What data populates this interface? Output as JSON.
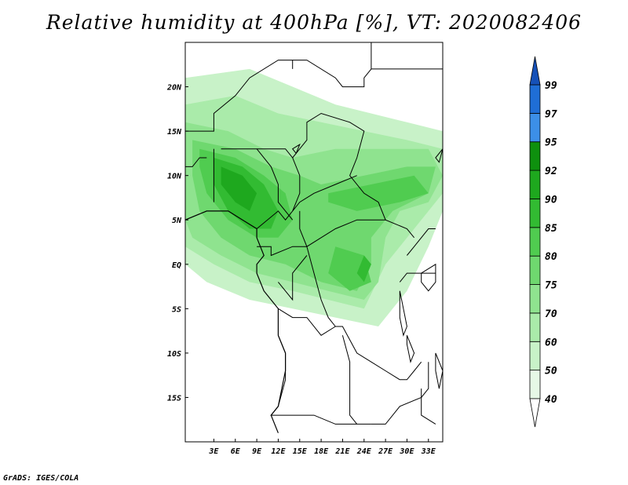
{
  "title": "Relative humidity at 400hPa [%], VT: 2020082406",
  "credit": "GrADS: IGES/COLA",
  "map": {
    "lon_range": [
      -1,
      35
    ],
    "lat_range": [
      -20,
      25
    ],
    "lon_ticks": [
      {
        "value": 3,
        "label": "3E"
      },
      {
        "value": 6,
        "label": "6E"
      },
      {
        "value": 9,
        "label": "9E"
      },
      {
        "value": 12,
        "label": "12E"
      },
      {
        "value": 15,
        "label": "15E"
      },
      {
        "value": 18,
        "label": "18E"
      },
      {
        "value": 21,
        "label": "21E"
      },
      {
        "value": 24,
        "label": "24E"
      },
      {
        "value": 27,
        "label": "27E"
      },
      {
        "value": 30,
        "label": "30E"
      },
      {
        "value": 33,
        "label": "33E"
      }
    ],
    "lat_ticks": [
      {
        "value": 20,
        "label": "20N"
      },
      {
        "value": 15,
        "label": "15N"
      },
      {
        "value": 10,
        "label": "10N"
      },
      {
        "value": 5,
        "label": "5N"
      },
      {
        "value": 0,
        "label": "EQ"
      },
      {
        "value": -5,
        "label": "5S"
      },
      {
        "value": -10,
        "label": "10S"
      },
      {
        "value": -15,
        "label": "15S"
      }
    ],
    "humidity_zones": [
      {
        "level": 50,
        "pts": [
          [
            -1,
            21
          ],
          [
            8,
            22
          ],
          [
            20,
            18
          ],
          [
            30,
            16
          ],
          [
            35,
            15
          ],
          [
            35,
            6
          ],
          [
            33,
            2
          ],
          [
            30,
            -3
          ],
          [
            26,
            -7
          ],
          [
            20,
            -6
          ],
          [
            14,
            -5
          ],
          [
            8,
            -4
          ],
          [
            2,
            -2
          ],
          [
            -1,
            0
          ]
        ]
      },
      {
        "level": 60,
        "pts": [
          [
            -1,
            18
          ],
          [
            6,
            19
          ],
          [
            12,
            17
          ],
          [
            18,
            16
          ],
          [
            24,
            15
          ],
          [
            30,
            14
          ],
          [
            35,
            13
          ],
          [
            35,
            8
          ],
          [
            31,
            4
          ],
          [
            27,
            0
          ],
          [
            24,
            -5
          ],
          [
            19,
            -4
          ],
          [
            14,
            -3
          ],
          [
            8,
            -2
          ],
          [
            3,
            0
          ],
          [
            -1,
            2
          ]
        ]
      },
      {
        "level": 70,
        "pts": [
          [
            -1,
            16
          ],
          [
            5,
            15
          ],
          [
            10,
            13
          ],
          [
            14,
            12
          ],
          [
            20,
            13
          ],
          [
            26,
            13
          ],
          [
            33,
            13
          ],
          [
            35,
            10
          ],
          [
            33,
            7
          ],
          [
            29,
            6
          ],
          [
            27,
            3
          ],
          [
            26,
            -2
          ],
          [
            24,
            -4
          ],
          [
            19,
            -3
          ],
          [
            14,
            -2
          ],
          [
            9,
            -1
          ],
          [
            4,
            1
          ],
          [
            0,
            3
          ],
          [
            -1,
            5
          ]
        ]
      },
      {
        "level": 75,
        "pts": [
          [
            0,
            14
          ],
          [
            6,
            13
          ],
          [
            11,
            11
          ],
          [
            15,
            10
          ],
          [
            18,
            9
          ],
          [
            24,
            10
          ],
          [
            30,
            11
          ],
          [
            34,
            11
          ],
          [
            33,
            8
          ],
          [
            28,
            6
          ],
          [
            25,
            3
          ],
          [
            25,
            0
          ],
          [
            23,
            -3
          ],
          [
            18,
            -2
          ],
          [
            13,
            0
          ],
          [
            8,
            1
          ],
          [
            4,
            3
          ],
          [
            1,
            6
          ],
          [
            0,
            10
          ]
        ]
      },
      {
        "level": 80,
        "pts": [
          [
            1,
            13
          ],
          [
            6,
            12
          ],
          [
            10,
            10
          ],
          [
            13,
            8
          ],
          [
            14,
            5
          ],
          [
            12,
            3
          ],
          [
            9,
            3
          ],
          [
            5,
            5
          ],
          [
            2,
            8
          ],
          [
            1,
            11
          ]
        ]
      },
      {
        "level": 80,
        "pts": [
          [
            19,
            8
          ],
          [
            25,
            9
          ],
          [
            31,
            10
          ],
          [
            33,
            8
          ],
          [
            29,
            7
          ],
          [
            23,
            6
          ],
          [
            19,
            7
          ]
        ]
      },
      {
        "level": 80,
        "pts": [
          [
            20,
            2
          ],
          [
            24,
            1
          ],
          [
            25,
            -2
          ],
          [
            22,
            -3
          ],
          [
            19,
            -1
          ]
        ]
      },
      {
        "level": 85,
        "pts": [
          [
            3,
            12
          ],
          [
            7,
            11
          ],
          [
            10,
            9
          ],
          [
            12,
            6
          ],
          [
            11,
            4
          ],
          [
            8,
            4
          ],
          [
            5,
            6
          ],
          [
            3,
            9
          ]
        ]
      },
      {
        "level": 85,
        "pts": [
          [
            24,
            1
          ],
          [
            25,
            0
          ],
          [
            24,
            -2
          ],
          [
            23,
            -1
          ]
        ]
      },
      {
        "level": 90,
        "pts": [
          [
            4,
            11
          ],
          [
            7,
            10
          ],
          [
            9,
            8
          ],
          [
            8,
            6
          ],
          [
            6,
            7
          ],
          [
            4,
            9
          ]
        ]
      }
    ],
    "borders": [
      [
        [
          -1,
          15
        ],
        [
          3,
          15
        ],
        [
          3,
          17
        ],
        [
          6,
          19
        ],
        [
          8,
          21
        ],
        [
          12,
          23
        ],
        [
          14,
          23
        ],
        [
          14,
          22
        ]
      ],
      [
        [
          14,
          23
        ],
        [
          16,
          23
        ],
        [
          20,
          21
        ],
        [
          21,
          20
        ],
        [
          24,
          20
        ],
        [
          24,
          21
        ],
        [
          25,
          22
        ],
        [
          25,
          25
        ]
      ],
      [
        [
          25,
          22
        ],
        [
          35,
          22
        ]
      ],
      [
        [
          4,
          13
        ],
        [
          7,
          13
        ],
        [
          10,
          13
        ],
        [
          13,
          13
        ],
        [
          14,
          12
        ],
        [
          15,
          10
        ],
        [
          15,
          8
        ],
        [
          14,
          6
        ]
      ],
      [
        [
          14,
          12
        ],
        [
          15,
          13
        ],
        [
          16,
          14
        ],
        [
          16,
          16
        ],
        [
          18,
          17
        ],
        [
          22,
          16
        ],
        [
          24,
          15
        ],
        [
          23,
          12
        ],
        [
          22,
          10
        ],
        [
          24,
          8
        ],
        [
          26,
          7
        ],
        [
          27,
          5
        ],
        [
          30,
          4
        ],
        [
          31,
          3
        ]
      ],
      [
        [
          -1,
          11
        ],
        [
          0,
          11
        ],
        [
          1,
          12
        ],
        [
          2,
          12
        ]
      ],
      [
        [
          3,
          13
        ],
        [
          3,
          10
        ],
        [
          3,
          7
        ]
      ],
      [
        [
          9,
          13
        ],
        [
          11,
          11
        ],
        [
          12,
          9
        ],
        [
          12,
          7
        ],
        [
          14,
          5
        ]
      ],
      [
        [
          9,
          4
        ],
        [
          12,
          6
        ],
        [
          13,
          5
        ],
        [
          14,
          6
        ]
      ],
      [
        [
          14,
          6
        ],
        [
          15,
          7
        ],
        [
          17,
          8
        ],
        [
          20,
          9
        ],
        [
          23,
          10
        ]
      ],
      [
        [
          15,
          6
        ],
        [
          15,
          4
        ],
        [
          16,
          2
        ],
        [
          18,
          3
        ],
        [
          20,
          4
        ],
        [
          23,
          5
        ],
        [
          26,
          5
        ],
        [
          27,
          5
        ]
      ],
      [
        [
          9,
          2
        ],
        [
          11,
          2
        ],
        [
          11,
          1
        ],
        [
          14,
          2
        ],
        [
          16,
          2
        ]
      ],
      [
        [
          12,
          -2
        ],
        [
          14,
          -4
        ],
        [
          14,
          -1
        ],
        [
          16,
          1
        ]
      ],
      [
        [
          16,
          2
        ],
        [
          17,
          -1
        ],
        [
          18,
          -4
        ],
        [
          19,
          -6
        ],
        [
          20,
          -7
        ],
        [
          21,
          -7
        ],
        [
          23,
          -10
        ],
        [
          25,
          -11
        ],
        [
          27,
          -12
        ],
        [
          29,
          -13
        ],
        [
          30,
          -13
        ],
        [
          31,
          -12
        ],
        [
          32,
          -11
        ]
      ],
      [
        [
          12,
          -5
        ],
        [
          14,
          -6
        ],
        [
          16,
          -6
        ],
        [
          18,
          -8
        ],
        [
          20,
          -7
        ]
      ],
      [
        [
          12,
          -8
        ],
        [
          13,
          -10
        ],
        [
          13,
          -13
        ],
        [
          12,
          -16
        ],
        [
          11,
          -17
        ],
        [
          13,
          -17
        ],
        [
          17,
          -17
        ],
        [
          20,
          -18
        ],
        [
          23,
          -18
        ],
        [
          25,
          -18
        ]
      ],
      [
        [
          21,
          -8
        ],
        [
          22,
          -11
        ],
        [
          22,
          -13
        ],
        [
          22,
          -17
        ],
        [
          23,
          -18
        ]
      ],
      [
        [
          25,
          -18
        ],
        [
          27,
          -18
        ],
        [
          29,
          -16
        ],
        [
          32,
          -15
        ],
        [
          33,
          -14
        ],
        [
          33,
          -11
        ]
      ],
      [
        [
          29,
          -2
        ],
        [
          30,
          -1
        ],
        [
          31,
          -1
        ],
        [
          33,
          -1
        ],
        [
          34,
          -1
        ]
      ],
      [
        [
          30,
          1
        ],
        [
          31,
          2
        ],
        [
          33,
          4
        ],
        [
          34,
          4
        ]
      ],
      [
        [
          32,
          -14
        ],
        [
          32,
          -17
        ],
        [
          34,
          -18
        ]
      ]
    ],
    "coast": [
      [
        [
          -1,
          5
        ],
        [
          2,
          6
        ],
        [
          5,
          6
        ],
        [
          7,
          5
        ],
        [
          9,
          4
        ],
        [
          9,
          3
        ],
        [
          10,
          1
        ],
        [
          9,
          0
        ],
        [
          9,
          -1
        ],
        [
          10,
          -3
        ],
        [
          11,
          -4
        ],
        [
          12,
          -5
        ],
        [
          12,
          -8
        ],
        [
          13,
          -10
        ],
        [
          13,
          -12
        ],
        [
          12,
          -16
        ],
        [
          11,
          -17
        ],
        [
          12,
          -19
        ]
      ]
    ],
    "lakes": [
      [
        [
          32,
          -1
        ],
        [
          34,
          0
        ],
        [
          34,
          -2
        ],
        [
          33,
          -3
        ],
        [
          32,
          -2
        ]
      ],
      [
        [
          29,
          -3
        ],
        [
          29.5,
          -5
        ],
        [
          30,
          -7
        ],
        [
          29.5,
          -8
        ],
        [
          29,
          -6
        ]
      ],
      [
        [
          30,
          -8
        ],
        [
          31,
          -10
        ],
        [
          30.5,
          -11
        ],
        [
          30,
          -9
        ]
      ],
      [
        [
          34,
          -10
        ],
        [
          35,
          -12
        ],
        [
          34.5,
          -14
        ],
        [
          34,
          -12
        ]
      ],
      [
        [
          14,
          13
        ],
        [
          15,
          13.5
        ],
        [
          14.5,
          12.5
        ]
      ],
      [
        [
          34,
          12
        ],
        [
          35,
          13
        ],
        [
          34.5,
          11.5
        ]
      ]
    ]
  },
  "colorbar": {
    "levels": [
      40,
      50,
      60,
      70,
      75,
      80,
      85,
      90,
      92,
      95,
      97,
      99
    ],
    "colors": [
      "#ffffff",
      "#e6f8e6",
      "#c8f2c8",
      "#aaebaa",
      "#8fe38f",
      "#6fd86f",
      "#50cc50",
      "#32bb32",
      "#1ea81e",
      "#0e900e",
      "#3c8fe8",
      "#1f6ed6",
      "#1651b8"
    ],
    "labels": [
      "40",
      "50",
      "60",
      "70",
      "75",
      "80",
      "85",
      "90",
      "92",
      "95",
      "97",
      "99"
    ]
  }
}
